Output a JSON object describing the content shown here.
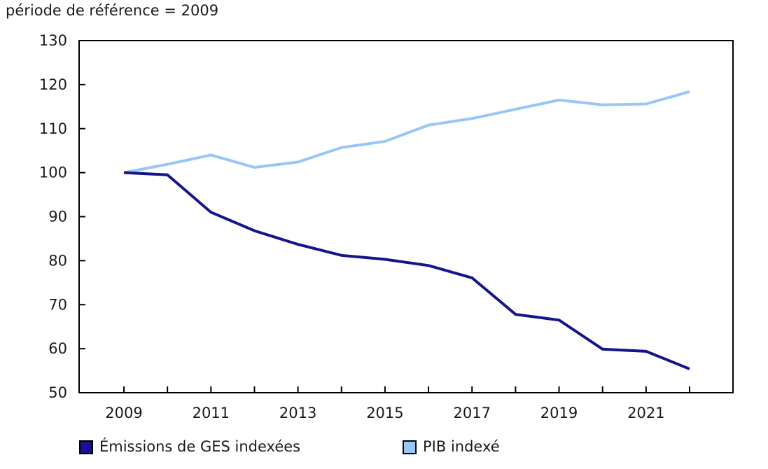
{
  "title": "période de référence = 2009",
  "chart_data": {
    "type": "line",
    "x": [
      2009,
      2010,
      2011,
      2012,
      2013,
      2014,
      2015,
      2016,
      2017,
      2018,
      2019,
      2020,
      2021,
      2022
    ],
    "x_label_years": [
      2009,
      2011,
      2013,
      2015,
      2017,
      2019,
      2021
    ],
    "ylim": [
      50,
      130
    ],
    "ytick_step": 10,
    "yticks": [
      50,
      60,
      70,
      80,
      90,
      100,
      110,
      120,
      130
    ],
    "grid": false,
    "legend_position": "bottom",
    "title": "période de référence = 2009",
    "xlabel": "",
    "ylabel": "",
    "series": [
      {
        "name": "Émissions de GES indexées",
        "color": "#14148C",
        "values": [
          100,
          99.5,
          91.0,
          86.8,
          83.7,
          81.2,
          80.3,
          78.9,
          76.1,
          67.8,
          66.5,
          59.9,
          59.4,
          55.4
        ]
      },
      {
        "name": "PIB indexé",
        "color": "#99C6F7",
        "values": [
          100,
          101.9,
          104.0,
          101.2,
          102.4,
          105.7,
          107.1,
          110.8,
          112.3,
          114.4,
          116.5,
          115.4,
          115.6,
          118.4
        ]
      }
    ],
    "colors": {
      "axis": "#000000",
      "text": "#1A1A1A"
    }
  }
}
